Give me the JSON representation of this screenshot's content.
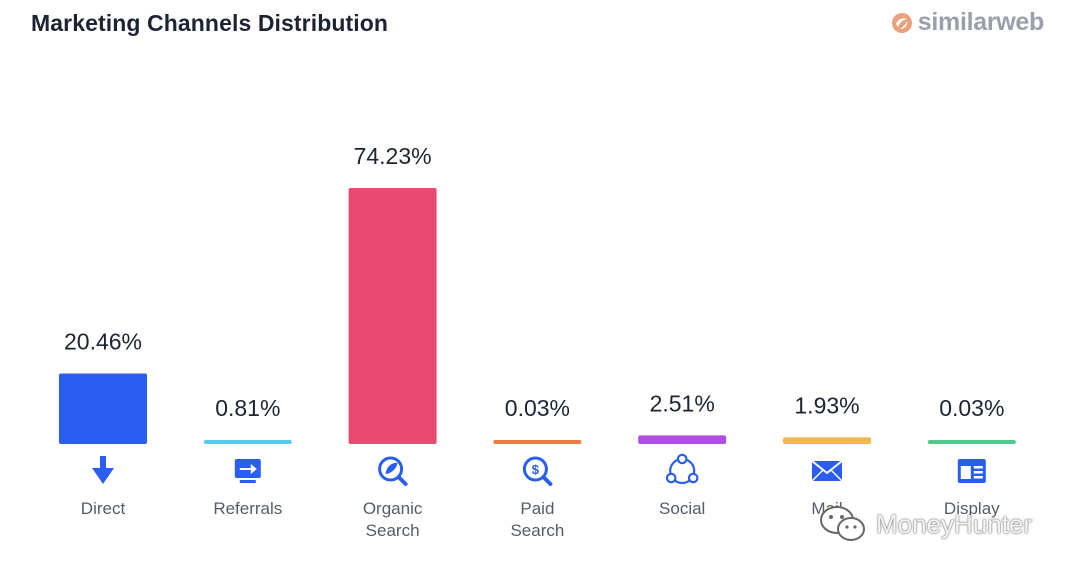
{
  "header": {
    "title": "Marketing Channels Distribution",
    "brand": "similarweb"
  },
  "watermark": {
    "text": "MoneyHunter"
  },
  "chart_data": {
    "type": "bar",
    "title": "Marketing Channels Distribution",
    "categories": [
      "Direct",
      "Referrals",
      "Organic Search",
      "Paid Search",
      "Social",
      "Mail",
      "Display"
    ],
    "category_lines": [
      [
        "Direct"
      ],
      [
        "Referrals"
      ],
      [
        "Organic",
        "Search"
      ],
      [
        "Paid",
        "Search"
      ],
      [
        "Social"
      ],
      [
        "Mail"
      ],
      [
        "Display"
      ]
    ],
    "values": [
      20.46,
      0.81,
      74.23,
      0.03,
      2.51,
      1.93,
      0.03
    ],
    "value_labels": [
      "20.46%",
      "0.81%",
      "74.23%",
      "0.03%",
      "2.51%",
      "1.93%",
      "0.03%"
    ],
    "colors": [
      "#2a5ef0",
      "#5bc7ea",
      "#e94a72",
      "#f07a43",
      "#b14fe3",
      "#f3b84b",
      "#52c88d"
    ],
    "icons": [
      "direct-arrow-icon",
      "referrals-icon",
      "organic-search-icon",
      "paid-search-icon",
      "social-icon",
      "mail-icon",
      "display-icon"
    ],
    "ylim": [
      0,
      74.23
    ],
    "grid": false,
    "legend": "none"
  }
}
